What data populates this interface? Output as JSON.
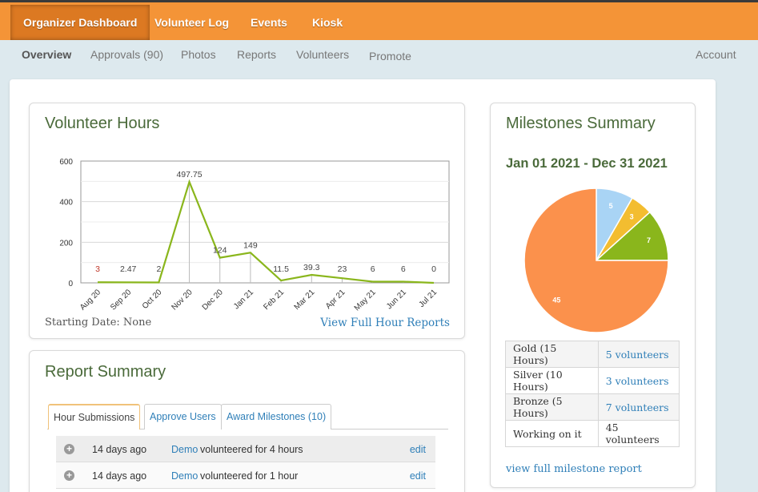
{
  "top_nav": [
    "Organizer Dashboard",
    "Volunteer Log",
    "Events",
    "Kiosk"
  ],
  "sub_nav": [
    "Overview",
    "Approvals (90)",
    "Photos",
    "Reports",
    "Volunteers",
    "Promote"
  ],
  "account_label": "Account",
  "volunteer_hours": {
    "title": "Volunteer Hours",
    "starting_date": "Starting Date: None",
    "view_full_link": "View Full Hour Reports",
    "chart_data": {
      "type": "line",
      "categories": [
        "Aug 20",
        "Sep 20",
        "Oct 20",
        "Nov 20",
        "Dec 20",
        "Jan 21",
        "Feb 21",
        "Mar 21",
        "Apr 21",
        "May 21",
        "Jun 21",
        "Jul 21"
      ],
      "values": [
        3,
        2.47,
        2,
        497.75,
        124,
        149,
        11.5,
        39.3,
        23,
        6,
        6,
        0
      ],
      "data_labels": [
        "3",
        "2.47",
        "2",
        "497.75",
        "124",
        "149",
        "11.5",
        "39.3",
        "23",
        "6",
        "6",
        "0"
      ],
      "yticks": [
        "600",
        "400",
        "200",
        "0"
      ],
      "ylim": [
        0,
        600
      ],
      "grid": true,
      "line_color": "#8ab61c"
    }
  },
  "report_summary": {
    "title": "Report Summary",
    "tabs": [
      "Hour Submissions",
      "Approve Users",
      "Award Milestones (10)"
    ],
    "rows": [
      {
        "ago": "14 days ago",
        "name": "Demo",
        "desc": "volunteered for 4 hours",
        "edit": "edit"
      },
      {
        "ago": "14 days ago",
        "name": "Demo",
        "desc": "volunteered for 1 hour",
        "edit": "edit"
      }
    ]
  },
  "milestones": {
    "title": "Milestones Summary",
    "date_range": "Jan 01 2021 - Dec 31 2021",
    "chart_data": {
      "type": "pie",
      "slices": [
        {
          "label": "5",
          "value": 5,
          "color": "#a9d4f5"
        },
        {
          "label": "3",
          "value": 3,
          "color": "#f3bd30"
        },
        {
          "label": "7",
          "value": 7,
          "color": "#8ab61c"
        },
        {
          "label": "45",
          "value": 45,
          "color": "#fb914c"
        }
      ]
    },
    "table": [
      {
        "level": "Gold (15 Hours)",
        "count": "5 volunteers",
        "link": true
      },
      {
        "level": "Silver (10 Hours)",
        "count": "3 volunteers",
        "link": true
      },
      {
        "level": "Bronze (5 Hours)",
        "count": "7 volunteers",
        "link": true
      },
      {
        "level": "Working on it",
        "count": "45 volunteers",
        "link": false
      }
    ],
    "full_report_link": "view full milestone report"
  }
}
